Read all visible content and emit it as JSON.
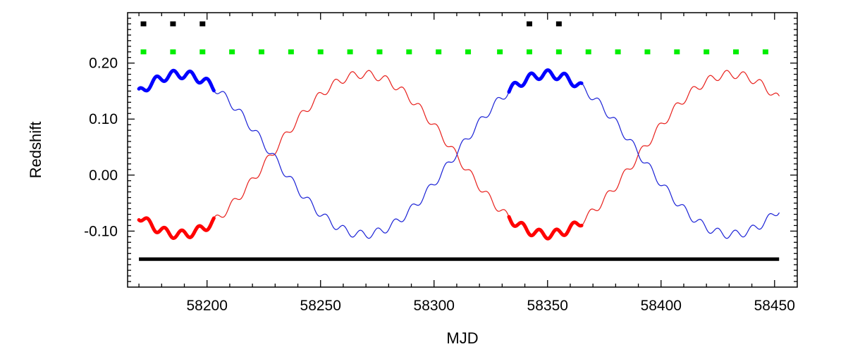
{
  "chart_data": {
    "type": "line",
    "title": "",
    "xlabel": "MJD",
    "ylabel": "Redshift",
    "xlim": [
      58165,
      58460
    ],
    "ylim": [
      -0.2,
      0.29
    ],
    "x_ticks": [
      58200,
      58250,
      58300,
      58350,
      58400,
      58450
    ],
    "x_tick_labels": [
      "58200",
      "58250",
      "58300",
      "58350",
      "58400",
      "58450"
    ],
    "y_ticks": [
      -0.1,
      0.0,
      0.1,
      0.2
    ],
    "y_tick_labels": [
      "-0.10",
      "0.00",
      "0.10",
      "0.20"
    ],
    "grid": false,
    "legend": "none",
    "series": [
      {
        "color": "#e8201c",
        "style": "thin-line",
        "model": {
          "x_start": 58170,
          "x_end": 58452,
          "step": 0.5,
          "long_offset": 0.037,
          "long_amplitude": 0.143,
          "long_period": 162,
          "long_peak_mjd": 58269,
          "short_amplitude": 0.0075,
          "short_period": 7.5,
          "short_phase_mjd": 58172
        }
      },
      {
        "color": "#1b22d6",
        "style": "thin-line",
        "model": {
          "x_start": 58170,
          "x_end": 58452,
          "step": 0.5,
          "long_offset": 0.037,
          "long_amplitude": -0.143,
          "long_period": 162,
          "long_peak_mjd": 58269,
          "short_amplitude": -0.0075,
          "short_period": 7.5,
          "short_phase_mjd": 58172
        }
      },
      {
        "color": "#0000ff",
        "style": "thick-line",
        "model": {
          "segments": [
            [
              58170,
              58203
            ],
            [
              58333,
              58365
            ]
          ],
          "step": 0.25,
          "long_offset": 0.037,
          "long_amplitude": -0.143,
          "long_period": 162,
          "long_peak_mjd": 58269,
          "short_amplitude": -0.0075,
          "short_period": 7.5,
          "short_phase_mjd": 58172
        }
      },
      {
        "color": "#ff0000",
        "style": "thick-line",
        "model": {
          "segments": [
            [
              58170,
              58203
            ],
            [
              58333,
              58365
            ]
          ],
          "step": 0.25,
          "long_offset": 0.037,
          "long_amplitude": 0.143,
          "long_period": 162,
          "long_peak_mjd": 58269,
          "short_amplitude": 0.0075,
          "short_period": 7.5,
          "short_phase_mjd": 58172
        }
      },
      {
        "color": "#00ee00",
        "style": "dashes",
        "y": 0.22,
        "x": [
          58172,
          58185,
          58198,
          58211,
          58224,
          58237,
          58250,
          58263,
          58276,
          58289,
          58302,
          58315,
          58329,
          58342,
          58355,
          58368,
          58381,
          58394,
          58407,
          58420,
          58433,
          58446
        ]
      },
      {
        "color": "#000000",
        "style": "dashes",
        "y": 0.27,
        "x": [
          58172,
          58185,
          58198,
          58342,
          58355
        ]
      },
      {
        "color": "#000000",
        "style": "thick-line",
        "y": -0.15,
        "x_range": [
          58170,
          58452
        ]
      }
    ]
  }
}
